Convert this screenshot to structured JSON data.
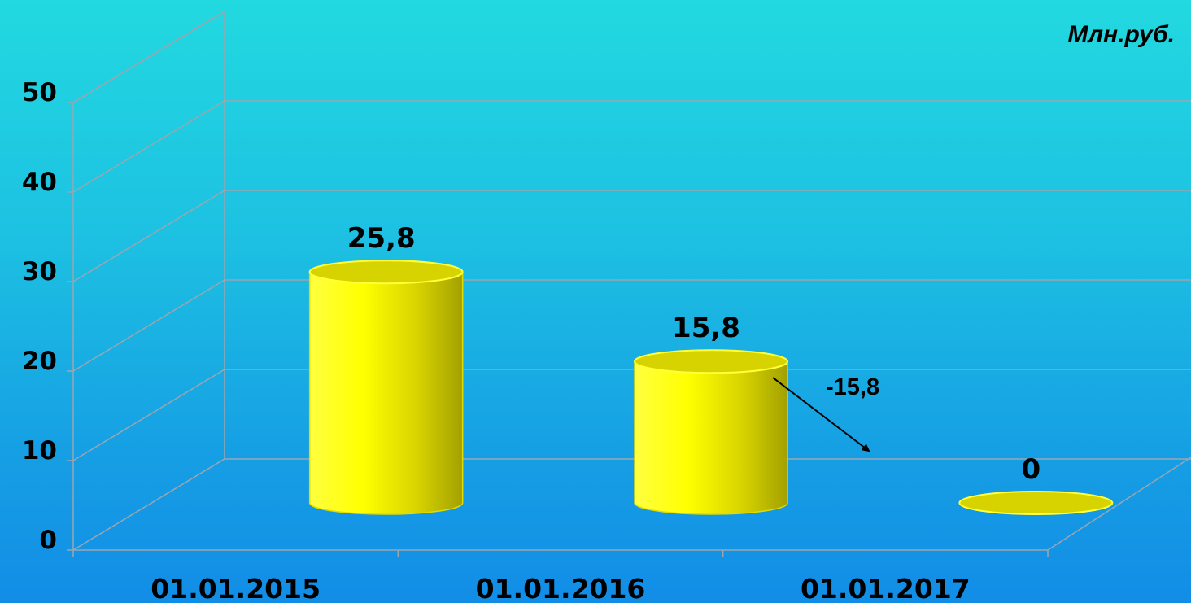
{
  "chart_data": {
    "type": "bar",
    "unit": "Млн.руб.",
    "categories": [
      "01.01.2015",
      "01.01.2016",
      "01.01.2017"
    ],
    "values": [
      25.8,
      15.8,
      0
    ],
    "data_labels": [
      "25,8",
      "15,8",
      "0"
    ],
    "ylim": [
      0,
      50
    ],
    "yticks": [
      0,
      10,
      20,
      30,
      40,
      50
    ],
    "ytick_labels": [
      "0",
      "10",
      "20",
      "30",
      "40",
      "50"
    ],
    "grid": true,
    "style": "3d-cylinder",
    "bar_color": "#ffff00",
    "annotation": {
      "text": "-15,8",
      "arrow": "from 01.01.2016 toward 01.01.2017"
    }
  }
}
